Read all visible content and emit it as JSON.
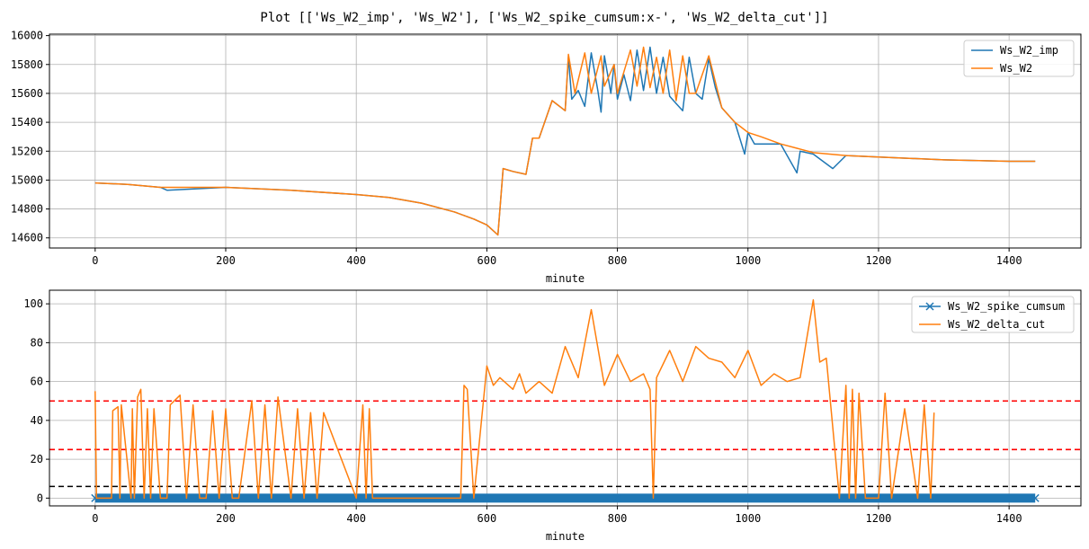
{
  "figure": {
    "title": "Plot [['Ws_W2_imp', 'Ws_W2'], ['Ws_W2_spike_cumsum:x-', 'Ws_W2_delta_cut']]"
  },
  "chart_data": [
    {
      "type": "line",
      "xlabel": "minute",
      "ylabel": "",
      "xlim": [
        -70,
        1510
      ],
      "ylim": [
        14530,
        16010
      ],
      "xticks": [
        0,
        200,
        400,
        600,
        800,
        1000,
        1200,
        1400
      ],
      "yticks": [
        14600,
        14800,
        15000,
        15200,
        15400,
        15600,
        15800,
        16000
      ],
      "grid": true,
      "legend_position": "upper right",
      "series": [
        {
          "name": "Ws_W2_imp",
          "color": "#1f77b4",
          "x": [
            0,
            50,
            100,
            110,
            200,
            300,
            400,
            450,
            500,
            550,
            580,
            600,
            617,
            625,
            640,
            660,
            670,
            680,
            700,
            720,
            725,
            730,
            740,
            750,
            760,
            770,
            775,
            780,
            790,
            795,
            800,
            810,
            820,
            830,
            840,
            850,
            860,
            870,
            880,
            890,
            900,
            910,
            920,
            930,
            940,
            950,
            960,
            980,
            995,
            1000,
            1010,
            1050,
            1075,
            1080,
            1100,
            1130,
            1150,
            1200,
            1300,
            1400,
            1440
          ],
          "y": [
            14980,
            14970,
            14950,
            14930,
            14950,
            14930,
            14900,
            14880,
            14840,
            14780,
            14730,
            14690,
            14620,
            15080,
            15060,
            15040,
            15290,
            15290,
            15550,
            15480,
            15850,
            15560,
            15620,
            15510,
            15880,
            15620,
            15470,
            15860,
            15600,
            15800,
            15560,
            15730,
            15550,
            15900,
            15620,
            15920,
            15600,
            15850,
            15580,
            15530,
            15480,
            15850,
            15600,
            15560,
            15840,
            15640,
            15500,
            15400,
            15180,
            15330,
            15250,
            15250,
            15050,
            15200,
            15180,
            15080,
            15170,
            15160,
            15140,
            15130,
            15130
          ]
        },
        {
          "name": "Ws_W2",
          "color": "#ff7f0e",
          "x": [
            0,
            50,
            100,
            200,
            300,
            400,
            450,
            500,
            550,
            580,
            600,
            617,
            625,
            640,
            660,
            670,
            680,
            700,
            720,
            725,
            735,
            750,
            760,
            775,
            780,
            795,
            800,
            820,
            830,
            840,
            850,
            860,
            870,
            880,
            890,
            900,
            910,
            920,
            940,
            960,
            980,
            1000,
            1020,
            1050,
            1075,
            1100,
            1150,
            1200,
            1300,
            1400,
            1440
          ],
          "y": [
            14980,
            14970,
            14950,
            14950,
            14930,
            14900,
            14880,
            14840,
            14780,
            14730,
            14690,
            14620,
            15080,
            15060,
            15040,
            15290,
            15290,
            15550,
            15480,
            15870,
            15600,
            15880,
            15600,
            15860,
            15650,
            15800,
            15600,
            15900,
            15650,
            15920,
            15640,
            15850,
            15600,
            15900,
            15550,
            15860,
            15600,
            15600,
            15860,
            15500,
            15400,
            15330,
            15300,
            15250,
            15220,
            15190,
            15170,
            15160,
            15140,
            15130,
            15130
          ]
        }
      ]
    },
    {
      "type": "line",
      "xlabel": "minute",
      "ylabel": "",
      "xlim": [
        -70,
        1510
      ],
      "ylim": [
        -4,
        107
      ],
      "xticks": [
        0,
        200,
        400,
        600,
        800,
        1000,
        1200,
        1400
      ],
      "yticks": [
        0,
        20,
        40,
        60,
        80,
        100
      ],
      "grid": true,
      "legend_position": "upper right",
      "hlines": [
        {
          "y": 50,
          "color": "#ff0000",
          "style": "dashed"
        },
        {
          "y": 25,
          "color": "#ff0000",
          "style": "dashed"
        },
        {
          "y": 6,
          "color": "#000000",
          "style": "dashed"
        }
      ],
      "series": [
        {
          "name": "Ws_W2_spike_cumsum",
          "color": "#1f77b4",
          "marker": "x",
          "x": [
            0,
            200,
            400,
            600,
            800,
            1000,
            1200,
            1440
          ],
          "y": [
            0,
            0,
            0,
            0,
            0,
            0,
            0,
            0
          ]
        },
        {
          "name": "Ws_W2_delta_cut",
          "color": "#ff7f0e",
          "x": [
            0,
            2,
            3,
            5,
            25,
            27,
            35,
            38,
            40,
            55,
            57,
            60,
            65,
            70,
            75,
            80,
            85,
            90,
            100,
            110,
            115,
            130,
            140,
            150,
            160,
            170,
            180,
            190,
            200,
            210,
            220,
            240,
            250,
            260,
            270,
            280,
            300,
            310,
            320,
            330,
            340,
            350,
            400,
            410,
            415,
            420,
            425,
            430,
            560,
            565,
            570,
            580,
            600,
            610,
            620,
            640,
            650,
            660,
            680,
            700,
            720,
            740,
            760,
            780,
            800,
            820,
            840,
            850,
            855,
            860,
            880,
            900,
            920,
            940,
            960,
            980,
            1000,
            1020,
            1040,
            1060,
            1080,
            1100,
            1110,
            1120,
            1140,
            1150,
            1155,
            1160,
            1165,
            1170,
            1180,
            1200,
            1210,
            1220,
            1240,
            1260,
            1270,
            1280,
            1285
          ],
          "y": [
            55,
            0,
            0,
            0,
            0,
            45,
            47,
            0,
            48,
            0,
            46,
            0,
            52,
            56,
            0,
            46,
            0,
            46,
            0,
            0,
            48,
            53,
            0,
            48,
            0,
            0,
            45,
            0,
            46,
            0,
            0,
            50,
            0,
            48,
            0,
            52,
            0,
            46,
            0,
            44,
            0,
            44,
            0,
            48,
            0,
            46,
            0,
            0,
            0,
            58,
            56,
            0,
            68,
            58,
            62,
            56,
            64,
            54,
            60,
            54,
            78,
            62,
            97,
            58,
            74,
            60,
            64,
            56,
            0,
            62,
            76,
            60,
            78,
            72,
            70,
            62,
            76,
            58,
            64,
            60,
            62,
            102,
            70,
            72,
            0,
            58,
            0,
            56,
            0,
            54,
            0,
            0,
            54,
            0,
            46,
            0,
            48,
            0,
            44
          ]
        }
      ]
    }
  ]
}
